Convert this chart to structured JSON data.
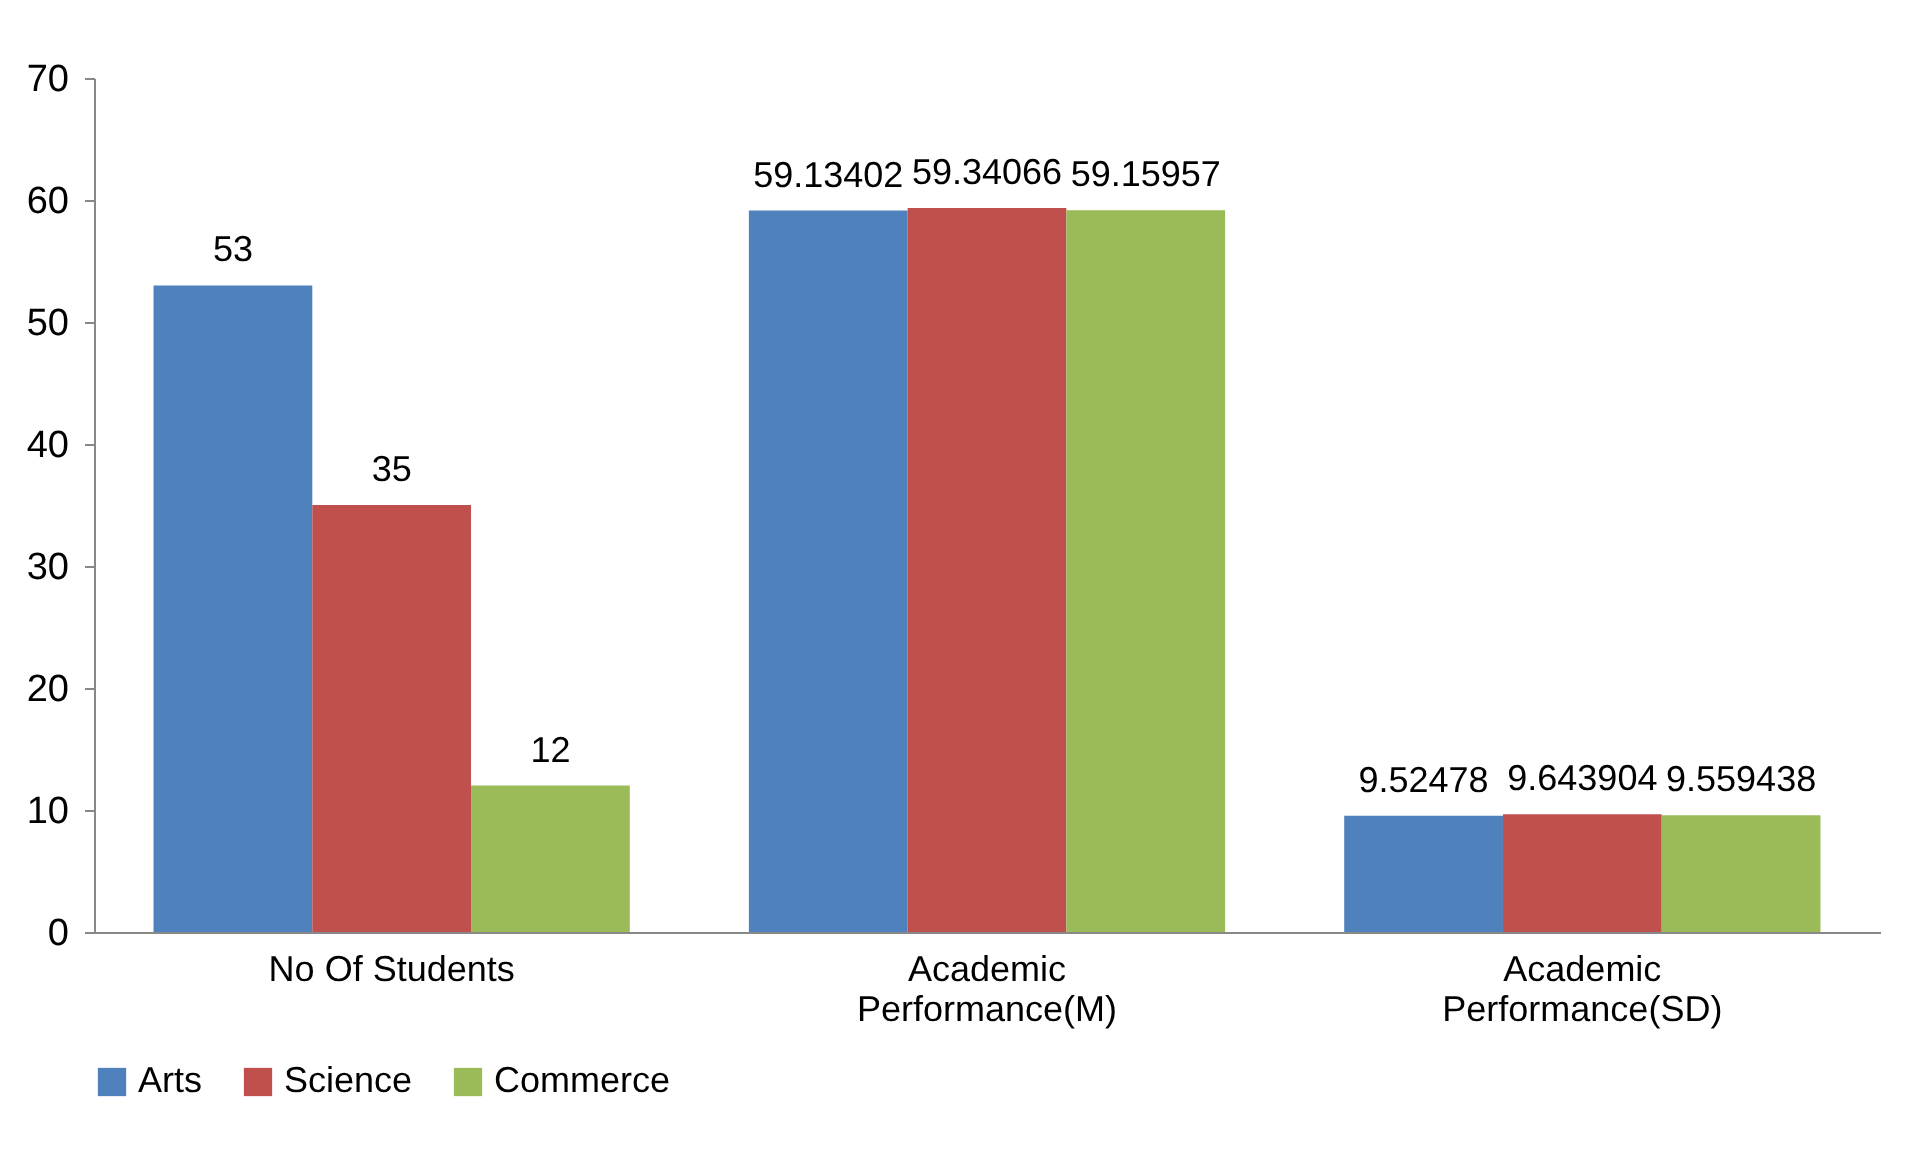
{
  "chart_data": {
    "type": "bar",
    "categories": [
      "No Of Students",
      "Academic Performance(M)",
      "Academic Performance(SD)"
    ],
    "series": [
      {
        "name": "Arts",
        "color": "#4f81bd",
        "values": [
          53,
          59.13402,
          9.52478
        ]
      },
      {
        "name": "Science",
        "color": "#c0504d",
        "values": [
          35,
          59.34066,
          9.643904
        ]
      },
      {
        "name": "Commerce",
        "color": "#9bbb59",
        "values": [
          12,
          59.15957,
          9.559438
        ]
      }
    ],
    "ylim": [
      0,
      70
    ],
    "yticks": [
      0,
      10,
      20,
      30,
      40,
      50,
      60,
      70
    ],
    "data_labels": true,
    "grid": false,
    "legend": "bottom"
  }
}
